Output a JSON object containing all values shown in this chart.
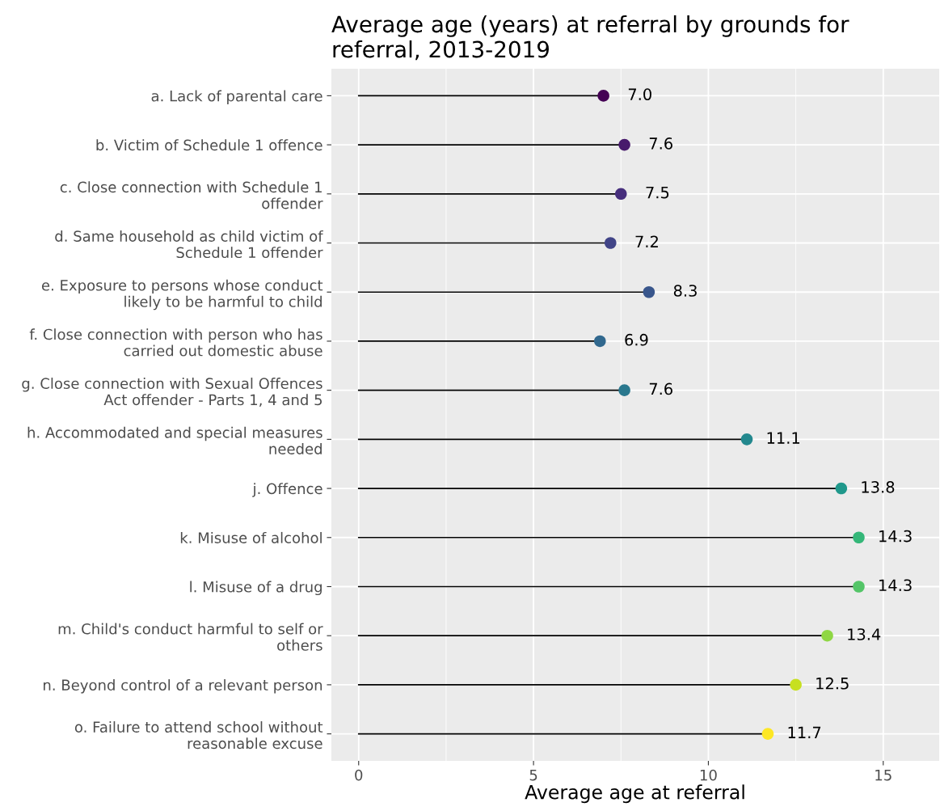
{
  "chart_data": {
    "type": "lollipop",
    "orientation": "horizontal",
    "title": "Average age (years) at referral by grounds for\nreferral, 2013-2019",
    "xlabel": "Average age at referral",
    "categories": [
      "a. Lack of parental care",
      "b. Victim of Schedule 1 offence",
      "c. Close connection with Schedule 1\noffender",
      "d. Same household as child victim of\nSchedule 1 offender",
      "e. Exposure to persons whose conduct\nlikely to be harmful to child",
      "f. Close connection with person who has\ncarried out domestic abuse",
      "g. Close connection with Sexual Offences\nAct offender - Parts 1, 4 and 5",
      "h. Accommodated and special measures\nneeded",
      "j. Offence",
      "k. Misuse of alcohol",
      "l. Misuse of a drug",
      "m. Child's conduct harmful to self or\nothers",
      "n. Beyond control of a relevant person",
      "o. Failure to attend school without\nreasonable excuse"
    ],
    "values": [
      7.0,
      7.6,
      7.5,
      7.2,
      8.3,
      6.9,
      7.6,
      11.1,
      13.8,
      14.3,
      14.3,
      13.4,
      12.5,
      11.7
    ],
    "value_labels": [
      "7.0",
      "7.6",
      "7.5",
      "7.2",
      "8.3",
      "6.9",
      "7.6",
      "11.1",
      "13.8",
      "14.3",
      "14.3",
      "13.4",
      "12.5",
      "11.7"
    ],
    "colors": [
      "#440154",
      "#481a6c",
      "#472f7d",
      "#414487",
      "#39568c",
      "#31688e",
      "#2a788e",
      "#23888e",
      "#1f988b",
      "#35b779",
      "#54c568",
      "#8fd744",
      "#c7e020",
      "#fde725"
    ],
    "xlim": [
      -0.78,
      16.6
    ],
    "xticks": [
      0,
      5,
      10,
      15
    ],
    "grid": true,
    "marker": "circle"
  }
}
